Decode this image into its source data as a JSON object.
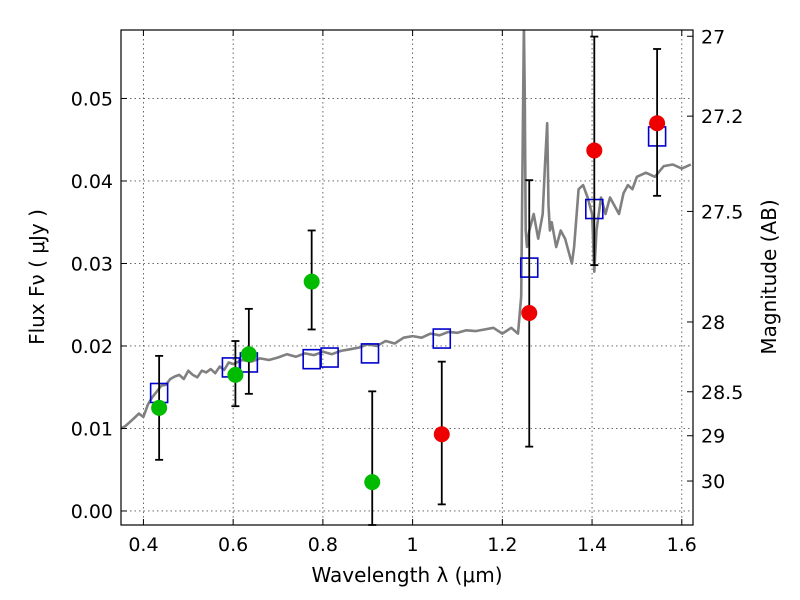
{
  "chart_data": {
    "type": "scatter",
    "xlabel": "Wavelength  λ (μm)",
    "ylabel_left": "Flux  Fν  ( μJy )",
    "ylabel_right": "Magnitude (AB)",
    "xlim": [
      0.35,
      1.625
    ],
    "ylim": [
      -0.0017,
      0.0583
    ],
    "grid": true,
    "x_ticks": [
      {
        "value": 0.4,
        "label": "0.4"
      },
      {
        "value": 0.6,
        "label": "0.6"
      },
      {
        "value": 0.8,
        "label": "0.8"
      },
      {
        "value": 1.0,
        "label": "1"
      },
      {
        "value": 1.2,
        "label": "1.2"
      },
      {
        "value": 1.4,
        "label": "1.4"
      },
      {
        "value": 1.6,
        "label": "1.6"
      }
    ],
    "y_ticks": [
      {
        "value": 0.0,
        "label": "0.00"
      },
      {
        "value": 0.01,
        "label": "0.01"
      },
      {
        "value": 0.02,
        "label": "0.02"
      },
      {
        "value": 0.03,
        "label": "0.03"
      },
      {
        "value": 0.04,
        "label": "0.04"
      },
      {
        "value": 0.05,
        "label": "0.05"
      }
    ],
    "mag_ticks": [
      {
        "flux": 0.05754,
        "label": "27"
      },
      {
        "flux": 0.04786,
        "label": "27.2"
      },
      {
        "flux": 0.03631,
        "label": "27.5"
      },
      {
        "flux": 0.02291,
        "label": "28"
      },
      {
        "flux": 0.01445,
        "label": "28.5"
      },
      {
        "flux": 0.00912,
        "label": "29"
      },
      {
        "flux": 0.00363,
        "label": "30"
      }
    ],
    "colors": {
      "model": "#808080",
      "green": "#00bb00",
      "red": "#ee0000",
      "box": "#0000cc",
      "errorbar": "#000000",
      "grid": "#555555"
    },
    "model_spectrum": {
      "x": [
        0.35,
        0.36,
        0.37,
        0.38,
        0.39,
        0.4,
        0.41,
        0.42,
        0.43,
        0.44,
        0.45,
        0.46,
        0.47,
        0.48,
        0.49,
        0.5,
        0.51,
        0.52,
        0.53,
        0.54,
        0.55,
        0.56,
        0.57,
        0.58,
        0.59,
        0.6,
        0.62,
        0.64,
        0.66,
        0.68,
        0.7,
        0.72,
        0.74,
        0.76,
        0.78,
        0.8,
        0.82,
        0.84,
        0.86,
        0.88,
        0.9,
        0.92,
        0.94,
        0.96,
        0.98,
        1.0,
        1.02,
        1.04,
        1.06,
        1.08,
        1.1,
        1.12,
        1.14,
        1.16,
        1.18,
        1.2,
        1.22,
        1.235,
        1.242,
        1.245,
        1.248,
        1.25,
        1.252,
        1.255,
        1.26,
        1.27,
        1.28,
        1.29,
        1.295,
        1.3,
        1.303,
        1.306,
        1.31,
        1.32,
        1.33,
        1.34,
        1.35,
        1.355,
        1.36,
        1.37,
        1.38,
        1.39,
        1.4,
        1.405,
        1.41,
        1.42,
        1.43,
        1.44,
        1.45,
        1.46,
        1.47,
        1.48,
        1.49,
        1.5,
        1.52,
        1.54,
        1.56,
        1.58,
        1.6,
        1.62
      ],
      "y": [
        0.01,
        0.0103,
        0.0108,
        0.0113,
        0.0118,
        0.0114,
        0.0129,
        0.0138,
        0.0145,
        0.0152,
        0.0153,
        0.016,
        0.0163,
        0.0165,
        0.016,
        0.017,
        0.0165,
        0.0162,
        0.017,
        0.0168,
        0.0172,
        0.0167,
        0.0175,
        0.0171,
        0.018,
        0.0178,
        0.0183,
        0.0181,
        0.0185,
        0.0183,
        0.0186,
        0.019,
        0.0187,
        0.0191,
        0.0189,
        0.0193,
        0.019,
        0.0194,
        0.0196,
        0.0198,
        0.0202,
        0.02,
        0.0206,
        0.0203,
        0.021,
        0.0212,
        0.021,
        0.0215,
        0.0213,
        0.0217,
        0.0216,
        0.0219,
        0.0218,
        0.022,
        0.0222,
        0.0215,
        0.0222,
        0.0215,
        0.026,
        0.042,
        0.059,
        0.05,
        0.034,
        0.032,
        0.034,
        0.036,
        0.033,
        0.036,
        0.042,
        0.047,
        0.037,
        0.034,
        0.035,
        0.032,
        0.034,
        0.033,
        0.031,
        0.03,
        0.032,
        0.039,
        0.0395,
        0.038,
        0.036,
        0.029,
        0.034,
        0.038,
        0.036,
        0.038,
        0.037,
        0.036,
        0.0385,
        0.0395,
        0.039,
        0.0405,
        0.041,
        0.0405,
        0.0418,
        0.042,
        0.0415,
        0.042
      ]
    },
    "model_photometry_boxes": {
      "x": [
        0.435,
        0.595,
        0.635,
        0.775,
        0.815,
        0.905,
        1.065,
        1.26,
        1.405,
        1.545
      ],
      "y": [
        0.0143,
        0.0174,
        0.018,
        0.0184,
        0.0186,
        0.0191,
        0.0209,
        0.0295,
        0.0366,
        0.0454
      ]
    },
    "observed_green": {
      "x": [
        0.435,
        0.605,
        0.635,
        0.775,
        0.91
      ],
      "y": [
        0.0125,
        0.0165,
        0.019,
        0.0278,
        0.0035
      ],
      "err_low": [
        0.0062,
        0.0127,
        0.0142,
        0.022,
        -0.0017
      ],
      "err_high": [
        0.0188,
        0.0206,
        0.0245,
        0.034,
        0.0145
      ]
    },
    "observed_red": {
      "x": [
        1.065,
        1.26,
        1.405,
        1.545
      ],
      "y": [
        0.0093,
        0.024,
        0.0437,
        0.047
      ],
      "err_low": [
        0.0008,
        0.0078,
        0.0298,
        0.0382
      ],
      "err_high": [
        0.0181,
        0.0401,
        0.0575,
        0.056
      ]
    }
  }
}
